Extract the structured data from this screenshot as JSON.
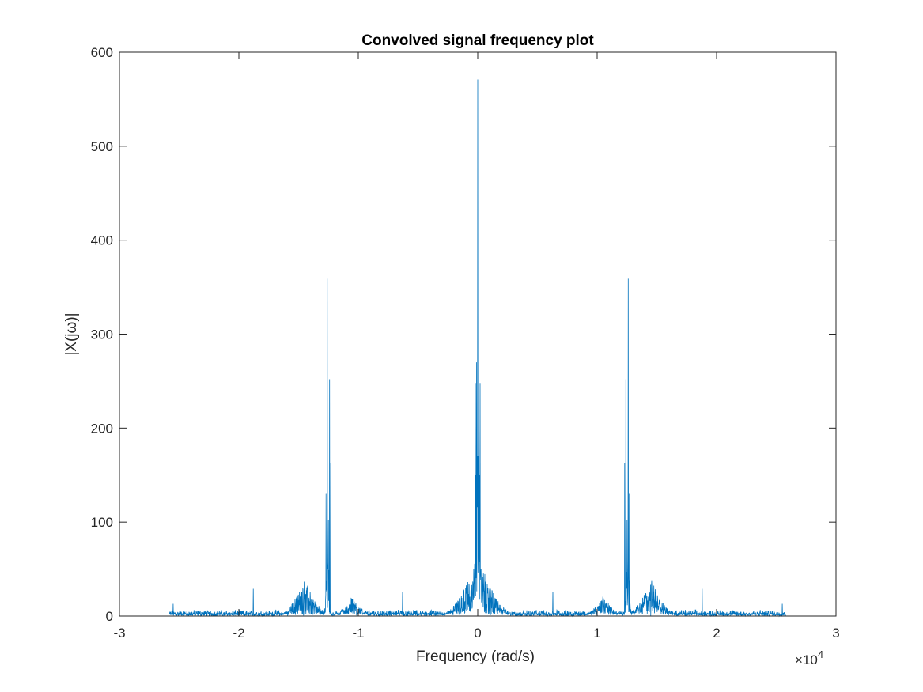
{
  "chart_data": {
    "type": "line",
    "title": "Convolved signal frequency plot",
    "xlabel": "Frequency (rad/s)",
    "ylabel": "|X(jω)|",
    "x_exponent_label": "×10",
    "x_exponent_power": "4",
    "xlim": [
      -3,
      3
    ],
    "ylim": [
      0,
      600
    ],
    "x_ticks": [
      -3,
      -2,
      -1,
      0,
      1,
      2,
      3
    ],
    "x_tick_labels": [
      "-3",
      "-2",
      "-1",
      "0",
      "1",
      "2",
      "3"
    ],
    "y_ticks": [
      0,
      100,
      200,
      300,
      400,
      500,
      600
    ],
    "y_tick_labels": [
      "0",
      "100",
      "200",
      "300",
      "400",
      "500",
      "600"
    ],
    "grid": false,
    "box": true,
    "series": [
      {
        "color": "#0072BD",
        "x_range": [
          -2.58,
          2.58
        ],
        "noise_floor": 6,
        "peaks": [
          {
            "x": 0.0,
            "y": 571
          },
          {
            "x": -0.01,
            "y": 270
          },
          {
            "x": 0.01,
            "y": 270
          },
          {
            "x": -0.02,
            "y": 248
          },
          {
            "x": 0.02,
            "y": 248
          },
          {
            "x": -0.005,
            "y": 170
          },
          {
            "x": 0.005,
            "y": 170
          },
          {
            "x": -0.015,
            "y": 150
          },
          {
            "x": 0.015,
            "y": 150
          },
          {
            "x": -1.26,
            "y": 359
          },
          {
            "x": -1.24,
            "y": 252
          },
          {
            "x": -1.23,
            "y": 163
          },
          {
            "x": -1.27,
            "y": 130
          },
          {
            "x": -1.25,
            "y": 102
          },
          {
            "x": 1.26,
            "y": 359
          },
          {
            "x": 1.24,
            "y": 252
          },
          {
            "x": 1.23,
            "y": 163
          },
          {
            "x": 1.27,
            "y": 130
          },
          {
            "x": 1.25,
            "y": 102
          },
          {
            "x": -1.88,
            "y": 29
          },
          {
            "x": 1.88,
            "y": 29
          },
          {
            "x": -0.63,
            "y": 26
          },
          {
            "x": 0.63,
            "y": 26
          },
          {
            "x": -2.55,
            "y": 13
          },
          {
            "x": 2.55,
            "y": 13
          }
        ],
        "clusters": [
          {
            "center": 0.0,
            "half_width": 0.06,
            "level": 150
          },
          {
            "center": 0.0,
            "half_width": 0.35,
            "level": 65
          },
          {
            "center": -1.255,
            "half_width": 0.04,
            "level": 80
          },
          {
            "center": 1.255,
            "half_width": 0.04,
            "level": 80
          },
          {
            "center": -1.45,
            "half_width": 0.25,
            "level": 40
          },
          {
            "center": 1.45,
            "half_width": 0.25,
            "level": 40
          },
          {
            "center": -1.05,
            "half_width": 0.2,
            "level": 22
          },
          {
            "center": 1.05,
            "half_width": 0.2,
            "level": 22
          }
        ]
      }
    ]
  }
}
